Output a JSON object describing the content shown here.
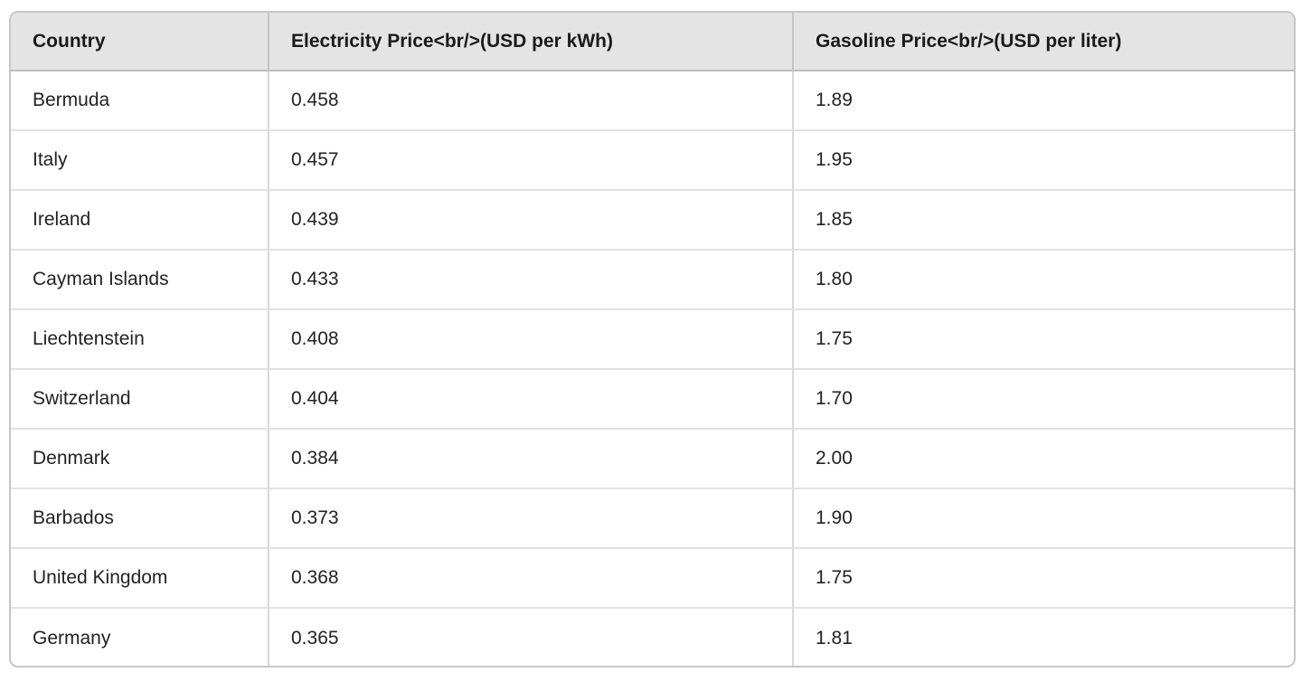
{
  "table": {
    "columns": [
      {
        "label": "Country"
      },
      {
        "label": "Electricity Price<br/>(USD per kWh)"
      },
      {
        "label": "Gasoline Price<br/>(USD per liter)"
      }
    ],
    "rows": [
      {
        "country": "Bermuda",
        "electricity": "0.458",
        "gasoline": "1.89"
      },
      {
        "country": "Italy",
        "electricity": "0.457",
        "gasoline": "1.95"
      },
      {
        "country": "Ireland",
        "electricity": "0.439",
        "gasoline": "1.85"
      },
      {
        "country": "Cayman Islands",
        "electricity": "0.433",
        "gasoline": "1.80"
      },
      {
        "country": "Liechtenstein",
        "electricity": "0.408",
        "gasoline": "1.75"
      },
      {
        "country": "Switzerland",
        "electricity": "0.404",
        "gasoline": "1.70"
      },
      {
        "country": "Denmark",
        "electricity": "0.384",
        "gasoline": "2.00"
      },
      {
        "country": "Barbados",
        "electricity": "0.373",
        "gasoline": "1.90"
      },
      {
        "country": "United Kingdom",
        "electricity": "0.368",
        "gasoline": "1.75"
      },
      {
        "country": "Germany",
        "electricity": "0.365",
        "gasoline": "1.81"
      }
    ]
  },
  "colors": {
    "header_background": "#e4e4e4",
    "header_text": "#1a1a1a",
    "body_text": "#222222",
    "outer_border": "#c6c6c6",
    "header_bottom_border": "#bdbdbd",
    "row_divider": "#e1e1e1",
    "column_divider": "#d8d8d8",
    "page_background": "#ffffff"
  },
  "chart_data": {
    "type": "table",
    "title": "",
    "columns": [
      "Country",
      "Electricity Price<br/>(USD per kWh)",
      "Gasoline Price<br/>(USD per liter)"
    ],
    "rows": [
      [
        "Bermuda",
        0.458,
        1.89
      ],
      [
        "Italy",
        0.457,
        1.95
      ],
      [
        "Ireland",
        0.439,
        1.85
      ],
      [
        "Cayman Islands",
        0.433,
        1.8
      ],
      [
        "Liechtenstein",
        0.408,
        1.75
      ],
      [
        "Switzerland",
        0.404,
        1.7
      ],
      [
        "Denmark",
        0.384,
        2.0
      ],
      [
        "Barbados",
        0.373,
        1.9
      ],
      [
        "United Kingdom",
        0.368,
        1.75
      ],
      [
        "Germany",
        0.365,
        1.81
      ]
    ]
  }
}
